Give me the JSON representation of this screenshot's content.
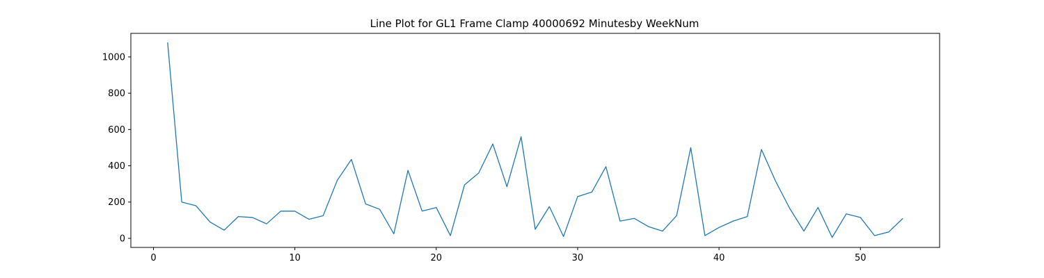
{
  "chart_data": {
    "type": "line",
    "title": "Line Plot for GL1 Frame Clamp 40000692 Minutesby WeekNum",
    "xlabel": "",
    "ylabel": "",
    "xlim": [
      -1.6,
      55.6
    ],
    "ylim": [
      -50,
      1130
    ],
    "xticks": [
      0,
      10,
      20,
      30,
      40,
      50
    ],
    "yticks": [
      0,
      200,
      400,
      600,
      800,
      1000
    ],
    "grid": false,
    "line_color": "#1f77b4",
    "series": [
      {
        "x": [
          1,
          2,
          3,
          4,
          5,
          6,
          7,
          8,
          9,
          10,
          11,
          12,
          13,
          14,
          15,
          16,
          17,
          18,
          19,
          20,
          21,
          22,
          23,
          24,
          25,
          26,
          27,
          28,
          29,
          30,
          31,
          32,
          33,
          34,
          35,
          36,
          37,
          38,
          39,
          40,
          41,
          42,
          43,
          44,
          45,
          46,
          47,
          48,
          49,
          50,
          51,
          52,
          53
        ],
        "values": [
          1080,
          200,
          180,
          90,
          45,
          120,
          115,
          80,
          150,
          150,
          105,
          125,
          320,
          435,
          190,
          160,
          25,
          375,
          150,
          170,
          15,
          295,
          360,
          520,
          285,
          560,
          50,
          175,
          10,
          230,
          255,
          395,
          95,
          110,
          65,
          40,
          125,
          500,
          15,
          60,
          95,
          120,
          490,
          315,
          165,
          40,
          170,
          5,
          135,
          115,
          15,
          35,
          110
        ]
      }
    ]
  }
}
